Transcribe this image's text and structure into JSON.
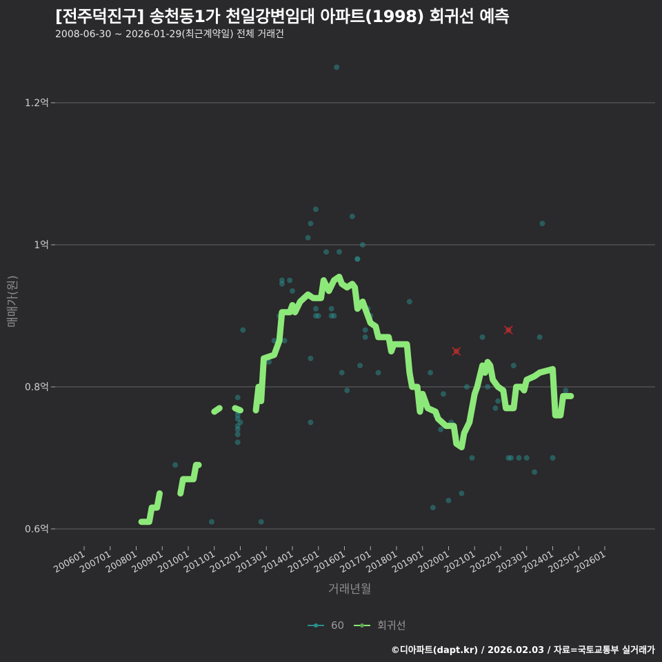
{
  "header": {
    "title": "[전주덕진구] 송천동1가 천일강변임대 아파트(1998) 회귀선 예측",
    "subtitle": "2008-06-30 ~ 2026-01-29(최근계약일) 전체 거래건"
  },
  "axes": {
    "y_label": "매매가(원)",
    "x_label": "거래년월"
  },
  "legend": {
    "items": [
      {
        "label": "60",
        "color": "#2a8f8f",
        "icon": "line-dot-icon"
      },
      {
        "label": "회귀선",
        "color": "#8de87a",
        "icon": "line-dot-icon"
      }
    ]
  },
  "footer": {
    "credit": "©디아파트(dapt.kr) / 2026.02.03 / 자료=국토교통부 실거래가"
  },
  "colors": {
    "background": "#2a292b",
    "grid": "#5a5a5a",
    "scatter": "#2a8f8f",
    "regression": "#8de87a",
    "outlier": "#cc2222"
  },
  "chart_data": {
    "type": "scatter",
    "title": "[전주덕진구] 송천동1가 천일강변임대 아파트(1998) 회귀선 예측",
    "subtitle": "2008-06-30 ~ 2026-01-29(최근계약일) 전체 거래건",
    "xlabel": "거래년월",
    "ylabel": "매매가(원)",
    "x_ticks": [
      "200601",
      "200701",
      "200801",
      "200901",
      "201001",
      "201101",
      "201201",
      "201301",
      "201401",
      "201501",
      "201601",
      "201701",
      "201801",
      "201901",
      "202001",
      "202101",
      "202201",
      "202301",
      "202401",
      "202501",
      "202601"
    ],
    "y_ticks": [
      {
        "value": 0.6,
        "label": "0.6억"
      },
      {
        "value": 0.8,
        "label": "0.8억"
      },
      {
        "value": 1.0,
        "label": "1억"
      },
      {
        "value": 1.2,
        "label": "1.2억"
      }
    ],
    "ylim": [
      0.57,
      1.27
    ],
    "grid": true,
    "legend_position": "bottom",
    "series": [
      {
        "name": "60",
        "type": "scatter",
        "unit": "억",
        "points": [
          [
            2008.5,
            0.61
          ],
          [
            2009.5,
            0.69
          ],
          [
            2010.9,
            0.61
          ],
          [
            2011.9,
            0.785
          ],
          [
            2011.9,
            0.765
          ],
          [
            2011.9,
            0.76
          ],
          [
            2011.9,
            0.755
          ],
          [
            2011.9,
            0.745
          ],
          [
            2011.9,
            0.74
          ],
          [
            2011.9,
            0.733
          ],
          [
            2011.9,
            0.722
          ],
          [
            2012.0,
            0.75
          ],
          [
            2012.1,
            0.88
          ],
          [
            2012.8,
            0.61
          ],
          [
            2013.1,
            0.835
          ],
          [
            2013.3,
            0.865
          ],
          [
            2013.5,
            0.9
          ],
          [
            2013.6,
            0.95
          ],
          [
            2013.6,
            0.945
          ],
          [
            2013.7,
            0.865
          ],
          [
            2013.9,
            0.95
          ],
          [
            2014.0,
            0.935
          ],
          [
            2014.6,
            1.01
          ],
          [
            2014.7,
            1.03
          ],
          [
            2014.7,
            0.84
          ],
          [
            2014.7,
            0.75
          ],
          [
            2014.9,
            1.05
          ],
          [
            2014.9,
            0.91
          ],
          [
            2014.9,
            0.9
          ],
          [
            2015.0,
            0.9
          ],
          [
            2015.3,
            0.99
          ],
          [
            2015.5,
            0.9
          ],
          [
            2015.5,
            0.91
          ],
          [
            2015.6,
            0.9
          ],
          [
            2015.7,
            1.25
          ],
          [
            2015.8,
            0.99
          ],
          [
            2015.9,
            0.82
          ],
          [
            2016.1,
            0.795
          ],
          [
            2016.3,
            1.04
          ],
          [
            2016.5,
            0.98
          ],
          [
            2016.5,
            0.98
          ],
          [
            2016.6,
            0.83
          ],
          [
            2016.7,
            1.0
          ],
          [
            2016.8,
            0.87
          ],
          [
            2016.8,
            0.88
          ],
          [
            2016.9,
            0.91
          ],
          [
            2017.0,
            0.9
          ],
          [
            2017.3,
            0.82
          ],
          [
            2017.5,
            0.87
          ],
          [
            2018.5,
            0.92
          ],
          [
            2019.3,
            0.82
          ],
          [
            2019.4,
            0.63
          ],
          [
            2019.5,
            0.76
          ],
          [
            2019.7,
            0.74
          ],
          [
            2019.8,
            0.79
          ],
          [
            2020.0,
            0.64
          ],
          [
            2020.1,
            0.75
          ],
          [
            2020.3,
            0.73
          ],
          [
            2020.5,
            0.65
          ],
          [
            2020.7,
            0.8
          ],
          [
            2020.9,
            0.7
          ],
          [
            2021.3,
            0.87
          ],
          [
            2021.5,
            0.8
          ],
          [
            2021.8,
            0.77
          ],
          [
            2021.9,
            0.78
          ],
          [
            2022.3,
            0.7
          ],
          [
            2022.4,
            0.7
          ],
          [
            2022.5,
            0.83
          ],
          [
            2022.7,
            0.7
          ],
          [
            2023.0,
            0.7
          ],
          [
            2023.3,
            0.68
          ],
          [
            2023.5,
            0.87
          ],
          [
            2023.6,
            1.03
          ],
          [
            2024.0,
            0.7
          ],
          [
            2024.5,
            0.795
          ],
          [
            2024.5,
            0.788
          ]
        ]
      },
      {
        "name": "outliers",
        "type": "scatter",
        "marker": "x",
        "unit": "억",
        "points": [
          [
            2020.3,
            0.85
          ],
          [
            2022.3,
            0.88
          ]
        ]
      },
      {
        "name": "회귀선",
        "type": "line",
        "unit": "억",
        "points": [
          [
            2008.2,
            0.61
          ],
          [
            2008.5,
            0.61
          ],
          [
            2008.6,
            0.63
          ],
          [
            2008.8,
            0.63
          ],
          [
            2008.9,
            0.65
          ],
          [
            2009.7,
            0.65
          ],
          [
            2009.8,
            0.67
          ],
          [
            2010.2,
            0.67
          ],
          [
            2010.3,
            0.69
          ],
          [
            2010.4,
            0.69
          ],
          [
            2011.0,
            0.765
          ],
          [
            2011.2,
            0.77
          ],
          [
            2011.8,
            0.77
          ],
          [
            2012.0,
            0.767
          ],
          [
            2012.6,
            0.767
          ],
          [
            2012.7,
            0.8
          ],
          [
            2012.8,
            0.78
          ],
          [
            2012.9,
            0.84
          ],
          [
            2013.3,
            0.845
          ],
          [
            2013.5,
            0.865
          ],
          [
            2013.6,
            0.905
          ],
          [
            2013.9,
            0.905
          ],
          [
            2014.0,
            0.915
          ],
          [
            2014.1,
            0.905
          ],
          [
            2014.3,
            0.92
          ],
          [
            2014.6,
            0.93
          ],
          [
            2014.8,
            0.925
          ],
          [
            2015.1,
            0.925
          ],
          [
            2015.2,
            0.95
          ],
          [
            2015.4,
            0.935
          ],
          [
            2015.6,
            0.95
          ],
          [
            2015.8,
            0.955
          ],
          [
            2015.9,
            0.945
          ],
          [
            2016.1,
            0.94
          ],
          [
            2016.3,
            0.945
          ],
          [
            2016.4,
            0.94
          ],
          [
            2016.5,
            0.91
          ],
          [
            2016.7,
            0.92
          ],
          [
            2016.8,
            0.91
          ],
          [
            2017.0,
            0.89
          ],
          [
            2017.2,
            0.885
          ],
          [
            2017.3,
            0.87
          ],
          [
            2017.7,
            0.87
          ],
          [
            2017.8,
            0.85
          ],
          [
            2017.9,
            0.86
          ],
          [
            2018.4,
            0.86
          ],
          [
            2018.5,
            0.82
          ],
          [
            2018.6,
            0.8
          ],
          [
            2018.8,
            0.8
          ],
          [
            2018.9,
            0.765
          ],
          [
            2019.0,
            0.79
          ],
          [
            2019.2,
            0.77
          ],
          [
            2019.5,
            0.765
          ],
          [
            2019.6,
            0.755
          ],
          [
            2019.9,
            0.745
          ],
          [
            2020.2,
            0.745
          ],
          [
            2020.3,
            0.72
          ],
          [
            2020.5,
            0.715
          ],
          [
            2020.6,
            0.735
          ],
          [
            2020.8,
            0.75
          ],
          [
            2021.0,
            0.79
          ],
          [
            2021.1,
            0.8
          ],
          [
            2021.3,
            0.83
          ],
          [
            2021.4,
            0.82
          ],
          [
            2021.5,
            0.835
          ],
          [
            2021.6,
            0.83
          ],
          [
            2021.7,
            0.81
          ],
          [
            2021.9,
            0.8
          ],
          [
            2022.1,
            0.795
          ],
          [
            2022.2,
            0.77
          ],
          [
            2022.5,
            0.77
          ],
          [
            2022.6,
            0.8
          ],
          [
            2022.8,
            0.8
          ],
          [
            2022.9,
            0.795
          ],
          [
            2023.0,
            0.81
          ],
          [
            2023.3,
            0.815
          ],
          [
            2023.5,
            0.82
          ],
          [
            2024.0,
            0.825
          ],
          [
            2024.1,
            0.76
          ],
          [
            2024.3,
            0.76
          ],
          [
            2024.4,
            0.787
          ],
          [
            2024.7,
            0.787
          ]
        ]
      }
    ]
  }
}
